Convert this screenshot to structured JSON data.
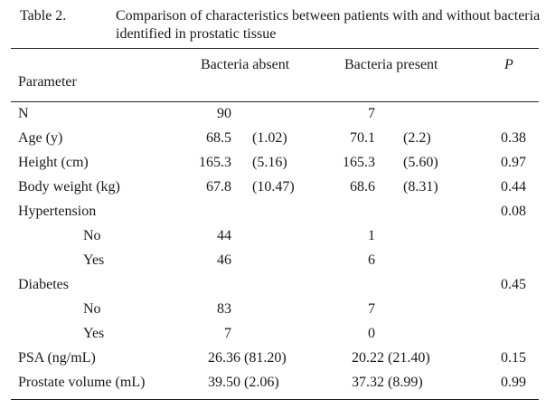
{
  "caption": {
    "label": "Table 2.",
    "text": "Comparison of characteristics between patients with and without bacteria identified in prostatic tissue"
  },
  "headers": {
    "parameter": "Parameter",
    "absent": "Bacteria absent",
    "present": "Bacteria present",
    "p": "P"
  },
  "rows": [
    {
      "label": "N",
      "a1": "90",
      "a2": "",
      "b1": "7",
      "b2": "",
      "p": ""
    },
    {
      "label": "Age (y)",
      "a1": "68.5",
      "a2": "(1.02)",
      "b1": "70.1",
      "b2": "(2.2)",
      "p": "0.38"
    },
    {
      "label": "Height (cm)",
      "a1": "165.3",
      "a2": "(5.16)",
      "b1": "165.3",
      "b2": "(5.60)",
      "p": "0.97"
    },
    {
      "label": "Body weight (kg)",
      "a1": "67.8",
      "a2": "(10.47)",
      "b1": "68.6",
      "b2": "(8.31)",
      "p": "0.44"
    },
    {
      "label": "Hypertension",
      "a1": "",
      "a2": "",
      "b1": "",
      "b2": "",
      "p": "0.08"
    },
    {
      "label": "No",
      "a1": "44",
      "a2": "",
      "b1": "1",
      "b2": "",
      "p": ""
    },
    {
      "label": "Yes",
      "a1": "46",
      "a2": "",
      "b1": "6",
      "b2": "",
      "p": ""
    },
    {
      "label": "Diabetes",
      "a1": "",
      "a2": "",
      "b1": "",
      "b2": "",
      "p": "0.45"
    },
    {
      "label": "No",
      "a1": "83",
      "a2": "",
      "b1": "7",
      "b2": "",
      "p": ""
    },
    {
      "label": "Yes",
      "a1": "7",
      "a2": "",
      "b1": "0",
      "b2": "",
      "p": ""
    },
    {
      "label": "PSA (ng/mL)",
      "a1": "26.36 (81.20)",
      "a2": "",
      "b1": "20.22 (21.40)",
      "b2": "",
      "p": "0.15"
    },
    {
      "label": "Prostate volume (mL)",
      "a1": "39.50 (2.06)",
      "a2": "",
      "b1": "37.32 (8.99)",
      "b2": "",
      "p": "0.99"
    }
  ]
}
